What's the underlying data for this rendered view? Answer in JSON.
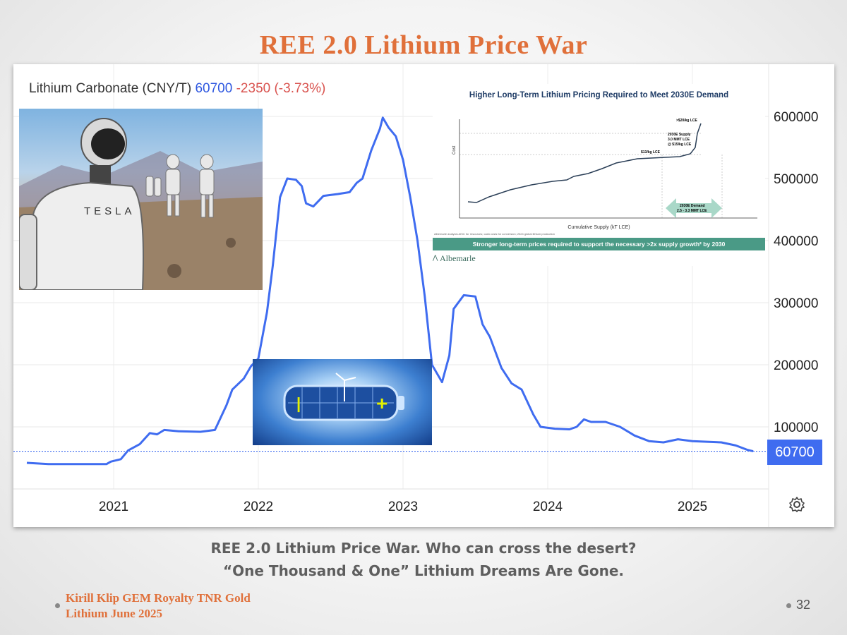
{
  "slide_title": "REE 2.0 Lithium Price War",
  "chart_header": {
    "instrument": "Lithium Carbonate (CNY/T)",
    "price": "60700",
    "change": "-2350 (-3.73%)"
  },
  "last_price_badge": "60700",
  "colors": {
    "line": "#3f6cf0",
    "title": "#e0703a",
    "change": "#d9534f",
    "banner": "#4a9a86"
  },
  "chart_data": {
    "type": "line",
    "title": "Lithium Carbonate (CNY/T)",
    "xlabel": "",
    "ylabel": "",
    "xlim": [
      2020.4,
      2025.75
    ],
    "ylim": [
      0,
      630000
    ],
    "x_ticks": [
      "2021",
      "2022",
      "2023",
      "2024",
      "2025"
    ],
    "y_ticks": [
      "100000",
      "200000",
      "300000",
      "400000",
      "500000",
      "600000"
    ],
    "grid": true,
    "reference_line": 60700,
    "series": [
      {
        "name": "",
        "points": [
          [
            2020.4,
            42000
          ],
          [
            2020.55,
            40000
          ],
          [
            2020.75,
            40000
          ],
          [
            2020.95,
            40000
          ],
          [
            2020.98,
            44000
          ],
          [
            2021.05,
            48000
          ],
          [
            2021.1,
            62000
          ],
          [
            2021.18,
            72000
          ],
          [
            2021.25,
            90000
          ],
          [
            2021.3,
            88000
          ],
          [
            2021.35,
            95000
          ],
          [
            2021.45,
            93000
          ],
          [
            2021.6,
            92000
          ],
          [
            2021.7,
            95000
          ],
          [
            2021.78,
            135000
          ],
          [
            2021.82,
            160000
          ],
          [
            2021.9,
            178000
          ],
          [
            2021.95,
            198000
          ],
          [
            2022.0,
            210000
          ],
          [
            2022.06,
            285000
          ],
          [
            2022.1,
            360000
          ],
          [
            2022.15,
            470000
          ],
          [
            2022.2,
            500000
          ],
          [
            2022.26,
            498000
          ],
          [
            2022.3,
            488000
          ],
          [
            2022.33,
            460000
          ],
          [
            2022.38,
            455000
          ],
          [
            2022.45,
            472000
          ],
          [
            2022.55,
            475000
          ],
          [
            2022.63,
            478000
          ],
          [
            2022.68,
            493000
          ],
          [
            2022.72,
            500000
          ],
          [
            2022.78,
            545000
          ],
          [
            2022.84,
            580000
          ],
          [
            2022.86,
            598000
          ],
          [
            2022.9,
            582000
          ],
          [
            2022.95,
            568000
          ],
          [
            2023.0,
            530000
          ],
          [
            2023.05,
            470000
          ],
          [
            2023.1,
            400000
          ],
          [
            2023.15,
            310000
          ],
          [
            2023.2,
            200000
          ],
          [
            2023.27,
            172000
          ],
          [
            2023.32,
            215000
          ],
          [
            2023.35,
            290000
          ],
          [
            2023.42,
            312000
          ],
          [
            2023.5,
            310000
          ],
          [
            2023.55,
            265000
          ],
          [
            2023.6,
            245000
          ],
          [
            2023.68,
            195000
          ],
          [
            2023.75,
            170000
          ],
          [
            2023.82,
            160000
          ],
          [
            2023.9,
            120000
          ],
          [
            2023.95,
            100000
          ],
          [
            2024.05,
            97000
          ],
          [
            2024.15,
            96000
          ],
          [
            2024.2,
            100000
          ],
          [
            2024.25,
            112000
          ],
          [
            2024.3,
            108000
          ],
          [
            2024.4,
            108000
          ],
          [
            2024.5,
            100000
          ],
          [
            2024.6,
            86000
          ],
          [
            2024.7,
            77000
          ],
          [
            2024.8,
            75000
          ],
          [
            2024.9,
            80000
          ],
          [
            2025.0,
            77000
          ],
          [
            2025.1,
            76000
          ],
          [
            2025.2,
            75000
          ],
          [
            2025.3,
            70000
          ],
          [
            2025.38,
            63000
          ],
          [
            2025.42,
            60700
          ]
        ]
      }
    ],
    "inset": {
      "title": "Higher Long-Term Lithium Pricing Required to Meet 2030E Demand",
      "xlabel": "Cumulative Supply (kT LCE)",
      "ylabel": "Cost",
      "annotations": [
        ">$20/kg LCE",
        "2030E Supply",
        "3.0 MMT LCE",
        "@ $15/kg LCE",
        "$13/kg LCE",
        "2030E Demand",
        "2.5 - 3.3 MMT LCE"
      ],
      "footnote": "Albemarle analysis AISC for resources; cash costs for conversion; 2024 global lithium production",
      "banner": "Stronger long-term prices required to support the necessary >2x supply growth² by 2030",
      "logo": "Albemarle"
    }
  },
  "caption": {
    "line1": "REE 2.0 Lithium Price War. Who can cross the desert?",
    "line2": "“One Thousand & One” Lithium Dreams Are Gone."
  },
  "author": {
    "line1": "Kirill Klip GEM Royalty TNR Gold",
    "line2": "Lithium June 2025"
  },
  "page_number": "32",
  "robot_text": "TESLA"
}
